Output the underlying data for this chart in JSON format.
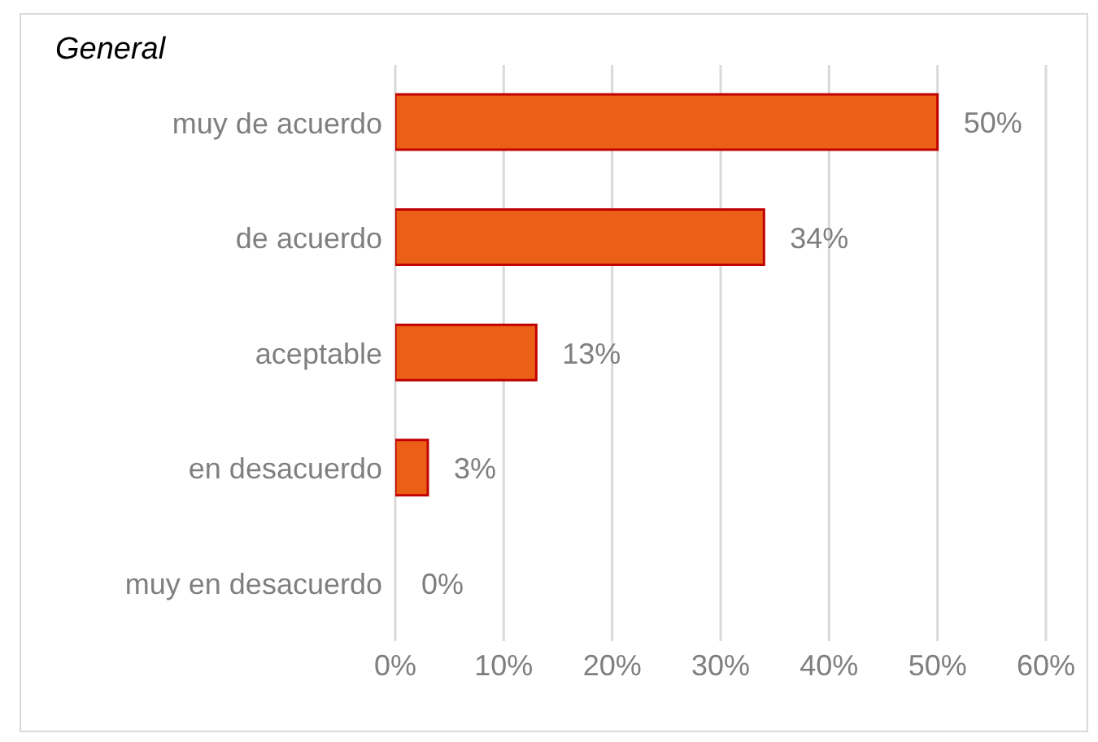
{
  "chart_data": {
    "type": "bar",
    "orientation": "horizontal",
    "title": "General",
    "categories": [
      "muy de acuerdo",
      "de acuerdo",
      "aceptable",
      "en desacuerdo",
      "muy en desacuerdo"
    ],
    "values": [
      50,
      34,
      13,
      3,
      0
    ],
    "value_labels": [
      "50%",
      "34%",
      "13%",
      "3%",
      "0%"
    ],
    "color": "#ec5f16",
    "xlim": [
      0,
      60
    ],
    "xticks": [
      {
        "value": 0,
        "label": "0%"
      },
      {
        "value": 10,
        "label": "10%"
      },
      {
        "value": 20,
        "label": "20%"
      },
      {
        "value": 30,
        "label": "30%"
      },
      {
        "value": 40,
        "label": "40%"
      },
      {
        "value": 50,
        "label": "50%"
      },
      {
        "value": 60,
        "label": "60%"
      }
    ],
    "grid": "x",
    "legend": false
  }
}
